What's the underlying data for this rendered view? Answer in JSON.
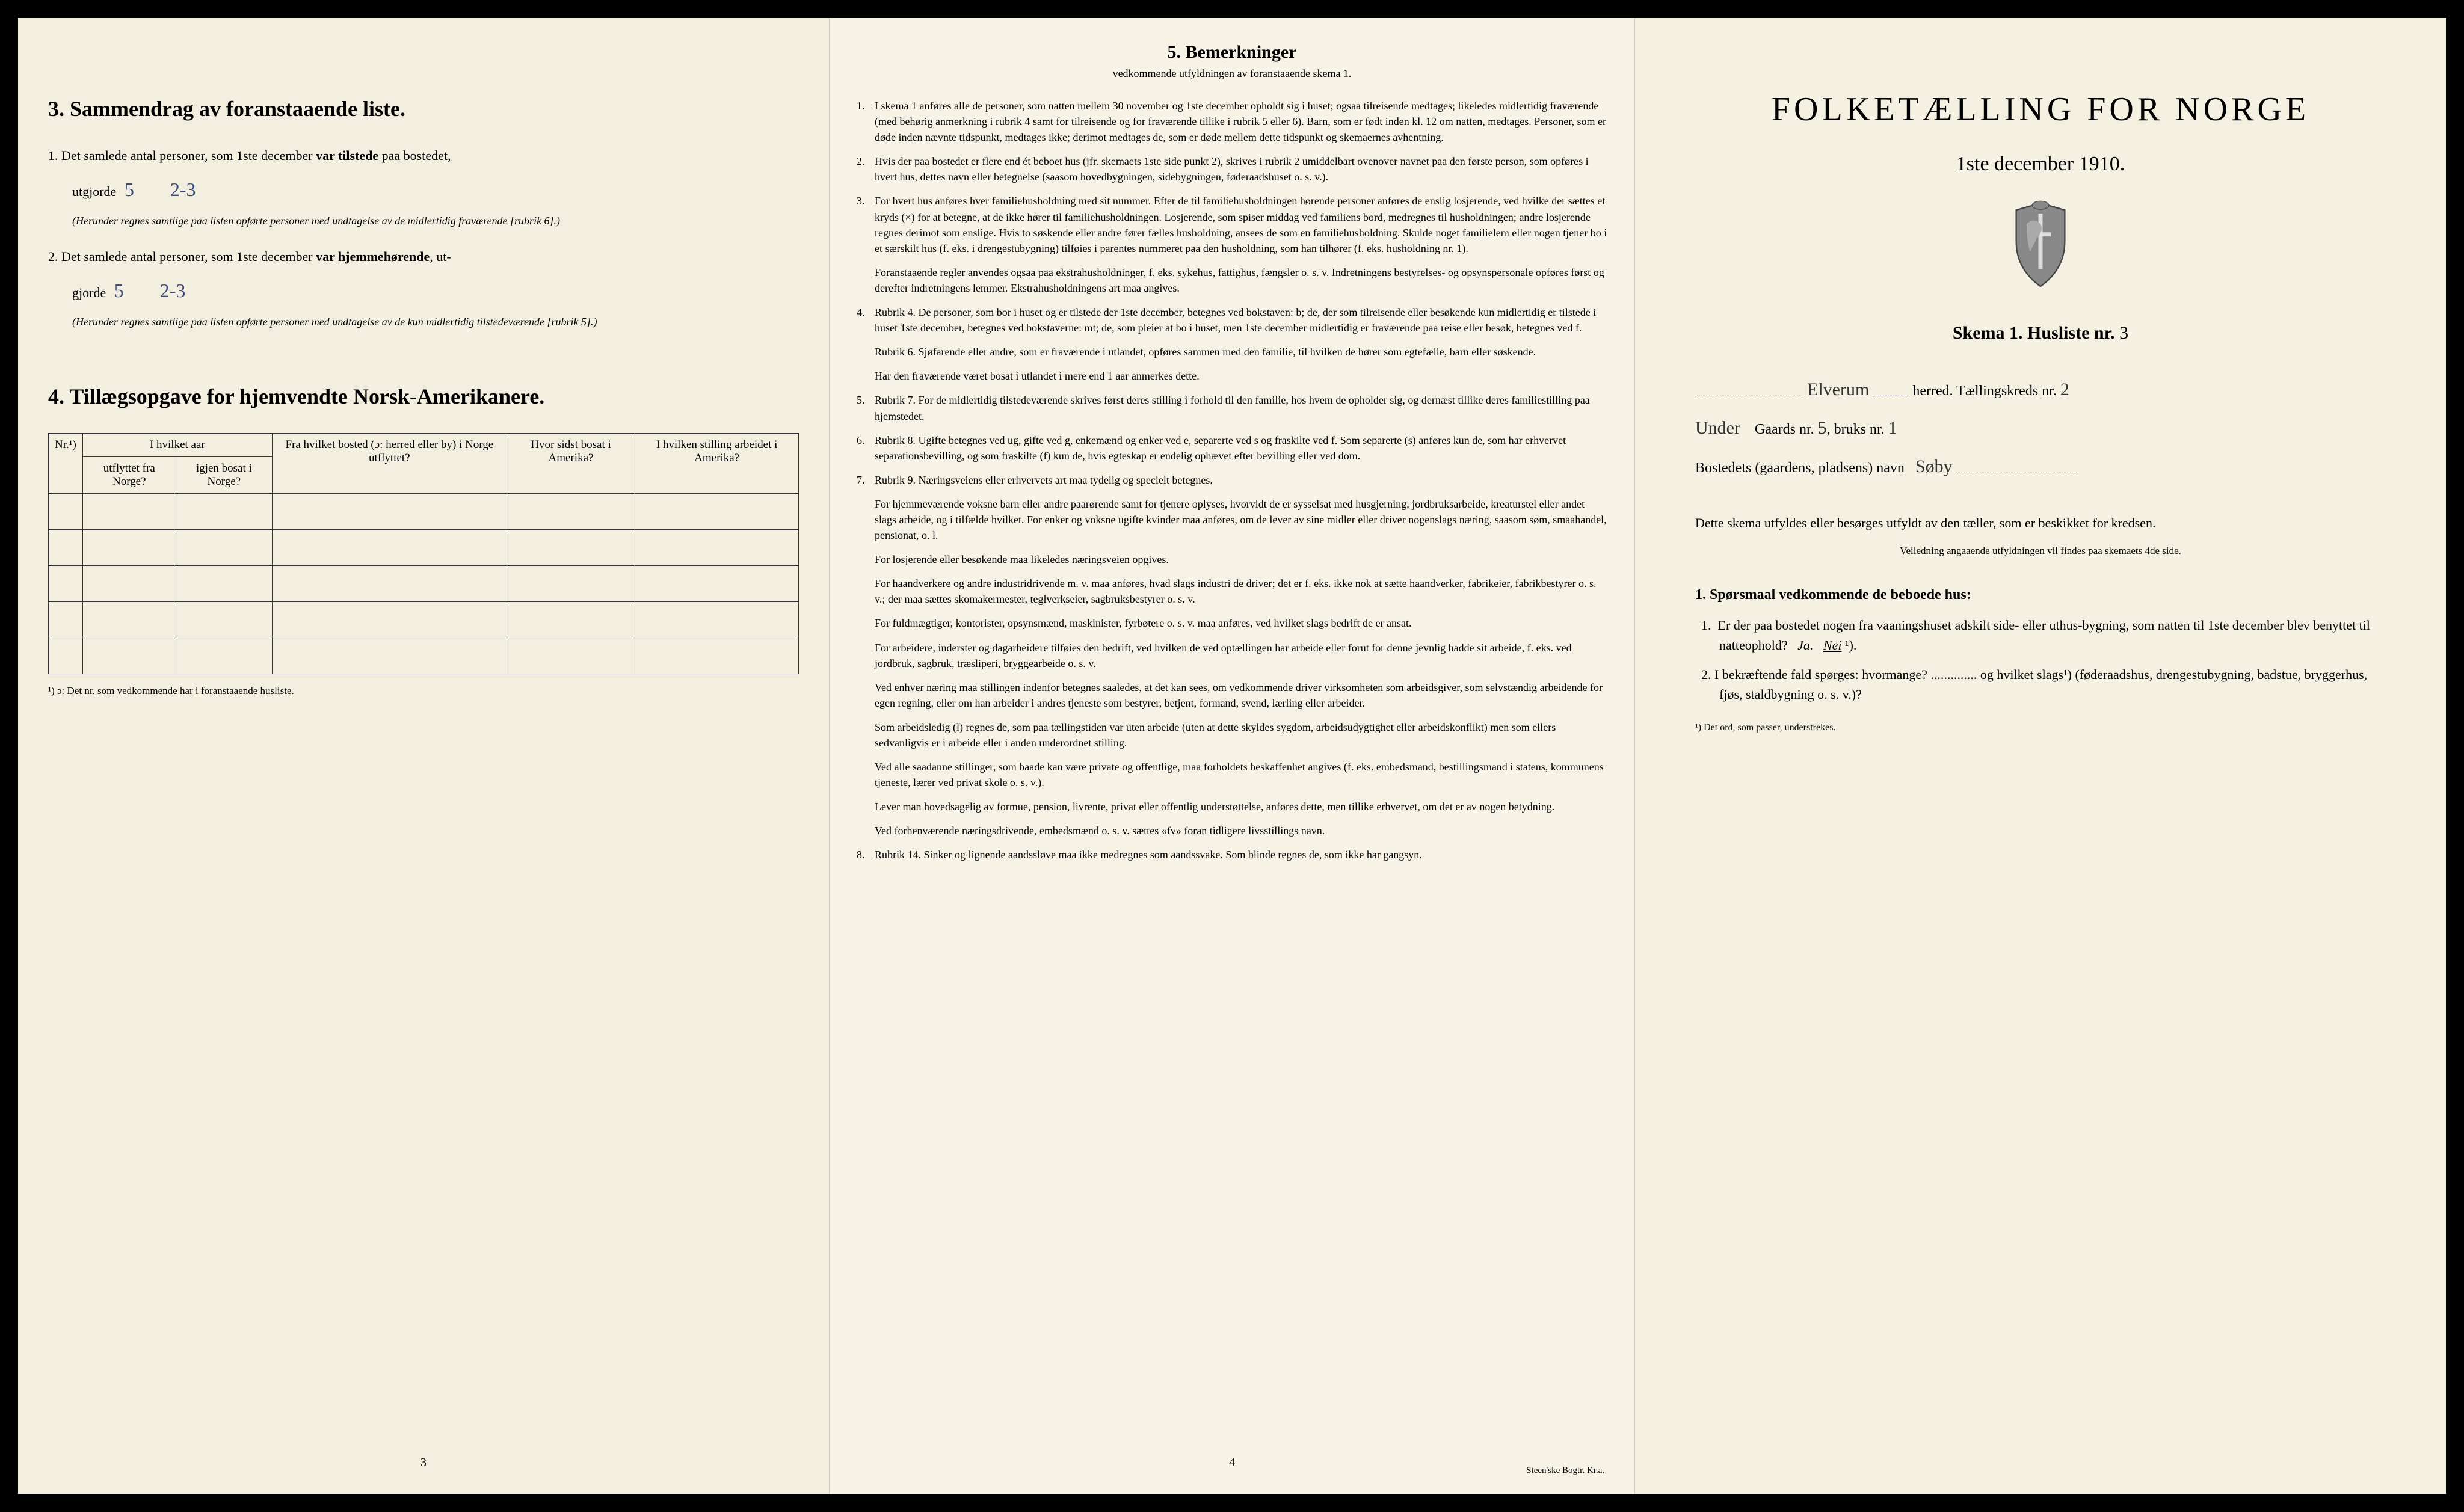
{
  "page1": {
    "section3": {
      "title": "3.  Sammendrag av foranstaaende liste.",
      "item1_prefix": "1.  Det samlede antal personer, som 1ste december ",
      "item1_bold": "var tilstede",
      "item1_suffix": " paa bostedet,",
      "utgjorde": "utgjorde",
      "hw1a": "5",
      "hw1b": "2-3",
      "note1": "(Herunder regnes samtlige paa listen opførte personer med undtagelse av de midlertidig fraværende [rubrik 6].)",
      "item2_prefix": "2.  Det samlede antal personer, som 1ste december ",
      "item2_bold": "var hjemmehørende",
      "item2_suffix": ", ut-",
      "hw2a": "5",
      "hw2b": "2-3",
      "note2": "(Herunder regnes samtlige paa listen opførte personer med undtagelse av de kun midlertidig tilstedeværende [rubrik 5].)"
    },
    "section4": {
      "title": "4.  Tillægsopgave for hjemvendte Norsk-Amerikanere.",
      "col_nr": "Nr.¹)",
      "col_aar": "I hvilket aar",
      "col_aar_sub1": "utflyttet fra Norge?",
      "col_aar_sub2": "igjen bosat i Norge?",
      "col_bosted": "Fra hvilket bosted (ɔ: herred eller by) i Norge utflyttet?",
      "col_sidst": "Hvor sidst bosat i Amerika?",
      "col_stilling": "I hvilken stilling arbeidet i Amerika?",
      "footnote": "¹) ɔ: Det nr. som vedkommende har i foranstaaende husliste.",
      "page_num": "3"
    }
  },
  "page2": {
    "title": "5.  Bemerkninger",
    "subtitle": "vedkommende utfyldningen av foranstaaende skema 1.",
    "items": [
      {
        "n": "1.",
        "t": "I skema 1 anføres alle de personer, som natten mellem 30 november og 1ste december opholdt sig i huset; ogsaa tilreisende medtages; likeledes midlertidig fraværende (med behørig anmerkning i rubrik 4 samt for tilreisende og for fraværende tillike i rubrik 5 eller 6). Barn, som er født inden kl. 12 om natten, medtages. Personer, som er døde inden nævnte tidspunkt, medtages ikke; derimot medtages de, som er døde mellem dette tidspunkt og skemaernes avhentning."
      },
      {
        "n": "2.",
        "t": "Hvis der paa bostedet er flere end ét beboet hus (jfr. skemaets 1ste side punkt 2), skrives i rubrik 2 umiddelbart ovenover navnet paa den første person, som opføres i hvert hus, dettes navn eller betegnelse (saasom hovedbygningen, sidebygningen, føderaadshuset o. s. v.)."
      },
      {
        "n": "3.",
        "t": "For hvert hus anføres hver familiehusholdning med sit nummer. Efter de til familiehusholdningen hørende personer anføres de enslig losjerende, ved hvilke der sættes et kryds (×) for at betegne, at de ikke hører til familiehusholdningen. Losjerende, som spiser middag ved familiens bord, medregnes til husholdningen; andre losjerende regnes derimot som enslige. Hvis to søskende eller andre fører fælles husholdning, ansees de som en familiehusholdning. Skulde noget familielem eller nogen tjener bo i et særskilt hus (f. eks. i drengestubygning) tilføies i parentes nummeret paa den husholdning, som han tilhører (f. eks. husholdning nr. 1)."
      },
      {
        "n": "",
        "t": "Foranstaaende regler anvendes ogsaa paa ekstrahusholdninger, f. eks. sykehus, fattighus, fængsler o. s. v. Indretningens bestyrelses- og opsynspersonale opføres først og derefter indretningens lemmer. Ekstrahusholdningens art maa angives."
      },
      {
        "n": "4.",
        "t": "Rubrik 4. De personer, som bor i huset og er tilstede der 1ste december, betegnes ved bokstaven: b; de, der som tilreisende eller besøkende kun midlertidig er tilstede i huset 1ste december, betegnes ved bokstaverne: mt; de, som pleier at bo i huset, men 1ste december midlertidig er fraværende paa reise eller besøk, betegnes ved f."
      },
      {
        "n": "",
        "t": "Rubrik 6. Sjøfarende eller andre, som er fraværende i utlandet, opføres sammen med den familie, til hvilken de hører som egtefælle, barn eller søskende."
      },
      {
        "n": "",
        "t": "Har den fraværende været bosat i utlandet i mere end 1 aar anmerkes dette."
      },
      {
        "n": "5.",
        "t": "Rubrik 7. For de midlertidig tilstedeværende skrives først deres stilling i forhold til den familie, hos hvem de opholder sig, og dernæst tillike deres familiestilling paa hjemstedet."
      },
      {
        "n": "6.",
        "t": "Rubrik 8. Ugifte betegnes ved ug, gifte ved g, enkemænd og enker ved e, separerte ved s og fraskilte ved f. Som separerte (s) anføres kun de, som har erhvervet separationsbevilling, og som fraskilte (f) kun de, hvis egteskap er endelig ophævet efter bevilling eller ved dom."
      },
      {
        "n": "7.",
        "t": "Rubrik 9. Næringsveiens eller erhvervets art maa tydelig og specielt betegnes."
      },
      {
        "n": "",
        "t": "For hjemmeværende voksne barn eller andre paarørende samt for tjenere oplyses, hvorvidt de er sysselsat med husgjerning, jordbruksarbeide, kreaturstel eller andet slags arbeide, og i tilfælde hvilket. For enker og voksne ugifte kvinder maa anføres, om de lever av sine midler eller driver nogenslags næring, saasom søm, smaahandel, pensionat, o. l."
      },
      {
        "n": "",
        "t": "For losjerende eller besøkende maa likeledes næringsveien opgives."
      },
      {
        "n": "",
        "t": "For haandverkere og andre industridrivende m. v. maa anføres, hvad slags industri de driver; det er f. eks. ikke nok at sætte haandverker, fabrikeier, fabrikbestyrer o. s. v.; der maa sættes skomakermester, teglverkseier, sagbruksbestyrer o. s. v."
      },
      {
        "n": "",
        "t": "For fuldmægtiger, kontorister, opsynsmænd, maskinister, fyrbøtere o. s. v. maa anføres, ved hvilket slags bedrift de er ansat."
      },
      {
        "n": "",
        "t": "For arbeidere, inderster og dagarbeidere tilføies den bedrift, ved hvilken de ved optællingen har arbeide eller forut for denne jevnlig hadde sit arbeide, f. eks. ved jordbruk, sagbruk, træsliperi, bryggearbeide o. s. v."
      },
      {
        "n": "",
        "t": "Ved enhver næring maa stillingen indenfor betegnes saaledes, at det kan sees, om vedkommende driver virksomheten som arbeidsgiver, som selvstændig arbeidende for egen regning, eller om han arbeider i andres tjeneste som bestyrer, betjent, formand, svend, lærling eller arbeider."
      },
      {
        "n": "",
        "t": "Som arbeidsledig (l) regnes de, som paa tællingstiden var uten arbeide (uten at dette skyldes sygdom, arbeidsudygtighet eller arbeidskonflikt) men som ellers sedvanligvis er i arbeide eller i anden underordnet stilling."
      },
      {
        "n": "",
        "t": "Ved alle saadanne stillinger, som baade kan være private og offentlige, maa forholdets beskaffenhet angives (f. eks. embedsmand, bestillingsmand i statens, kommunens tjeneste, lærer ved privat skole o. s. v.)."
      },
      {
        "n": "",
        "t": "Lever man hovedsagelig av formue, pension, livrente, privat eller offentlig understøttelse, anføres dette, men tillike erhvervet, om det er av nogen betydning."
      },
      {
        "n": "",
        "t": "Ved forhenværende næringsdrivende, embedsmænd o. s. v. sættes «fv» foran tidligere livsstillings navn."
      },
      {
        "n": "8.",
        "t": "Rubrik 14. Sinker og lignende aandssløve maa ikke medregnes som aandssvake. Som blinde regnes de, som ikke har gangsyn."
      }
    ],
    "page_num": "4",
    "printer": "Steen'ske Bogtr. Kr.a."
  },
  "page3": {
    "main_title": "FOLKETÆLLING FOR NORGE",
    "date": "1ste december 1910.",
    "skema_label": "Skema 1.  Husliste nr.",
    "husliste_nr": "3",
    "herred_hw": "Elverum",
    "herred_label": "herred.  Tællingskreds nr.",
    "kreds_nr": "2",
    "under_label": "Under",
    "gaards_label": "Gaards nr.",
    "gaards_nr": "5",
    "bruks_label": "bruks nr.",
    "bruks_nr": "1",
    "bosted_label": "Bostedets (gaardens, pladsens) navn",
    "bosted_hw": "Søby",
    "instruct": "Dette skema utfyldes eller besørges utfyldt av den tæller, som er beskikket for kredsen.",
    "instruct_small": "Veiledning angaaende utfyldningen vil findes paa skemaets 4de side.",
    "q_title": "1. Spørsmaal vedkommende de beboede hus:",
    "q1": "1.  Er der paa bostedet nogen fra vaaningshuset adskilt side- eller uthus-bygning, som natten til 1ste december blev benyttet til natteophold?   Ja.   Nei ¹).",
    "q2": "2.  I bekræftende fald spørges: hvormange? .............. og hvilket slags¹) (føderaadshus, drengestubygning, badstue, bryggerhus, fjøs, staldbygning o. s. v.)?",
    "footnote": "¹) Det ord, som passer, understrekes."
  },
  "colors": {
    "paper": "#f5f1e4",
    "ink": "#1a1a1a",
    "handwriting": "#3a4a7a",
    "border": "#333333",
    "bg": "#000000"
  }
}
